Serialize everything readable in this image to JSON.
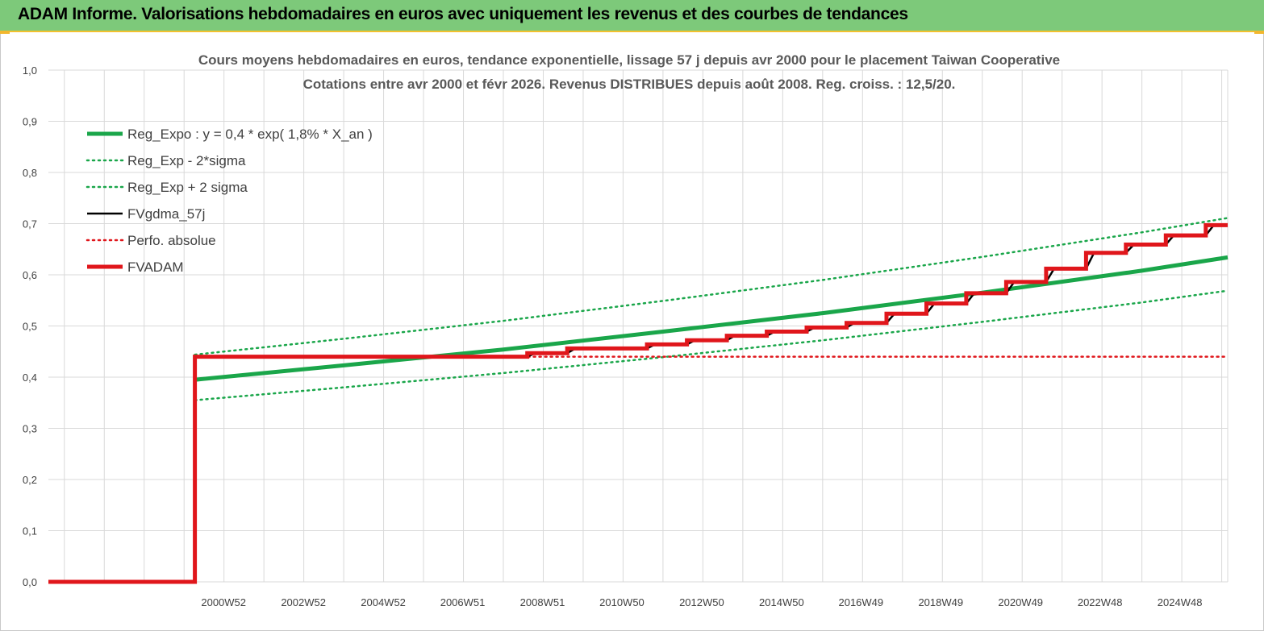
{
  "header": {
    "title": "ADAM Informe. Valorisations hebdomadaires en euros avec uniquement les revenus et des courbes de tendances"
  },
  "colors": {
    "header_bg": "#7dc97a",
    "accent": "#f2c12e",
    "trend_green": "#1aa64a",
    "fv_black": "#000000",
    "adam_red": "#e0161b"
  },
  "chart_data": {
    "type": "line",
    "title_lines": [
      "Cours moyens hebdomadaires en euros, tendance exponentielle, lissage 57 j depuis avr 2000 pour le placement Taiwan Cooperative",
      "Cotations entre avr 2000 et févr 2026. Revenus DISTRIBUES depuis août 2008. Reg. croiss. : 12,5/20."
    ],
    "xlabel": "",
    "ylabel": "",
    "ylim": [
      0,
      1
    ],
    "xlim": [
      1996.6,
      2026.15
    ],
    "y_ticks": [
      "0,0",
      "0,1",
      "0,2",
      "0,3",
      "0,4",
      "0,5",
      "0,6",
      "0,7",
      "0,8",
      "0,9",
      "1,0"
    ],
    "x_ticks": [
      {
        "label": "2000W52",
        "pos": 2000.99
      },
      {
        "label": "2002W52",
        "pos": 2002.99
      },
      {
        "label": "2004W52",
        "pos": 2004.99
      },
      {
        "label": "2006W51",
        "pos": 2006.98
      },
      {
        "label": "2008W51",
        "pos": 2008.98
      },
      {
        "label": "2010W50",
        "pos": 2010.97
      },
      {
        "label": "2012W50",
        "pos": 2012.97
      },
      {
        "label": "2014W50",
        "pos": 2014.97
      },
      {
        "label": "2016W49",
        "pos": 2016.96
      },
      {
        "label": "2018W49",
        "pos": 2018.96
      },
      {
        "label": "2020W49",
        "pos": 2020.96
      },
      {
        "label": "2022W48",
        "pos": 2022.95
      },
      {
        "label": "2024W48",
        "pos": 2024.95
      }
    ],
    "grid": true,
    "legend_position": "top-left",
    "series": [
      {
        "name": "Reg_Expo : y = 0,4 * exp( 1,8% *  X_an )",
        "color": "#1aa64a",
        "style": "solid-thick",
        "x": [
          2000.27,
          2004,
          2008,
          2012,
          2016,
          2020,
          2024,
          2026.15
        ],
        "y": [
          0.395,
          0.423,
          0.454,
          0.489,
          0.525,
          0.565,
          0.608,
          0.634
        ]
      },
      {
        "name": "Reg_Exp - 2*sigma",
        "color": "#1aa64a",
        "style": "dotted",
        "x": [
          2000.27,
          2004,
          2008,
          2012,
          2016,
          2020,
          2024,
          2026.15
        ],
        "y": [
          0.355,
          0.38,
          0.408,
          0.439,
          0.472,
          0.508,
          0.546,
          0.569
        ]
      },
      {
        "name": "Reg_Exp + 2 sigma",
        "color": "#1aa64a",
        "style": "dotted",
        "x": [
          2000.27,
          2004,
          2008,
          2012,
          2016,
          2020,
          2024,
          2026.15
        ],
        "y": [
          0.444,
          0.475,
          0.51,
          0.549,
          0.59,
          0.635,
          0.683,
          0.711
        ]
      },
      {
        "name": "FVgdma_57j",
        "color": "#000000",
        "style": "solid-thin",
        "x": [
          1996.6,
          2000.27,
          2000.27,
          2008.6,
          2008.8,
          2009.6,
          2009.8,
          2011.6,
          2011.8,
          2012.6,
          2012.8,
          2013.6,
          2013.8,
          2014.6,
          2014.8,
          2015.6,
          2015.8,
          2016.6,
          2016.8,
          2017.6,
          2017.8,
          2018.6,
          2018.8,
          2019.6,
          2019.8,
          2020.6,
          2020.8,
          2021.6,
          2021.8,
          2022.6,
          2022.8,
          2023.6,
          2023.8,
          2024.6,
          2024.8,
          2025.6,
          2025.8,
          2026.15
        ],
        "y": [
          0.0,
          0.0,
          0.44,
          0.44,
          0.447,
          0.447,
          0.456,
          0.456,
          0.464,
          0.464,
          0.472,
          0.472,
          0.481,
          0.481,
          0.489,
          0.489,
          0.497,
          0.497,
          0.506,
          0.506,
          0.524,
          0.524,
          0.544,
          0.544,
          0.564,
          0.564,
          0.586,
          0.586,
          0.612,
          0.612,
          0.643,
          0.643,
          0.659,
          0.659,
          0.677,
          0.677,
          0.697,
          0.697
        ]
      },
      {
        "name": "Perfo. absolue",
        "color": "#e0161b",
        "style": "dotted",
        "x": [
          2000.27,
          2026.15
        ],
        "y": [
          0.44,
          0.44
        ]
      },
      {
        "name": "FVADAM",
        "color": "#e0161b",
        "style": "solid-thick",
        "x": [
          1996.6,
          2000.27,
          2000.27,
          2008.6,
          2008.6,
          2009.6,
          2009.6,
          2011.6,
          2011.6,
          2012.6,
          2012.6,
          2013.6,
          2013.6,
          2014.6,
          2014.6,
          2015.6,
          2015.6,
          2016.6,
          2016.6,
          2017.6,
          2017.6,
          2018.6,
          2018.6,
          2019.6,
          2019.6,
          2020.6,
          2020.6,
          2021.6,
          2021.6,
          2022.6,
          2022.6,
          2023.6,
          2023.6,
          2024.6,
          2024.6,
          2025.6,
          2025.6,
          2026.15
        ],
        "y": [
          0.0,
          0.0,
          0.44,
          0.44,
          0.447,
          0.447,
          0.456,
          0.456,
          0.464,
          0.464,
          0.472,
          0.472,
          0.481,
          0.481,
          0.489,
          0.489,
          0.497,
          0.497,
          0.506,
          0.506,
          0.524,
          0.524,
          0.544,
          0.544,
          0.564,
          0.564,
          0.586,
          0.586,
          0.612,
          0.612,
          0.643,
          0.643,
          0.659,
          0.659,
          0.677,
          0.677,
          0.697,
          0.697
        ]
      }
    ]
  }
}
